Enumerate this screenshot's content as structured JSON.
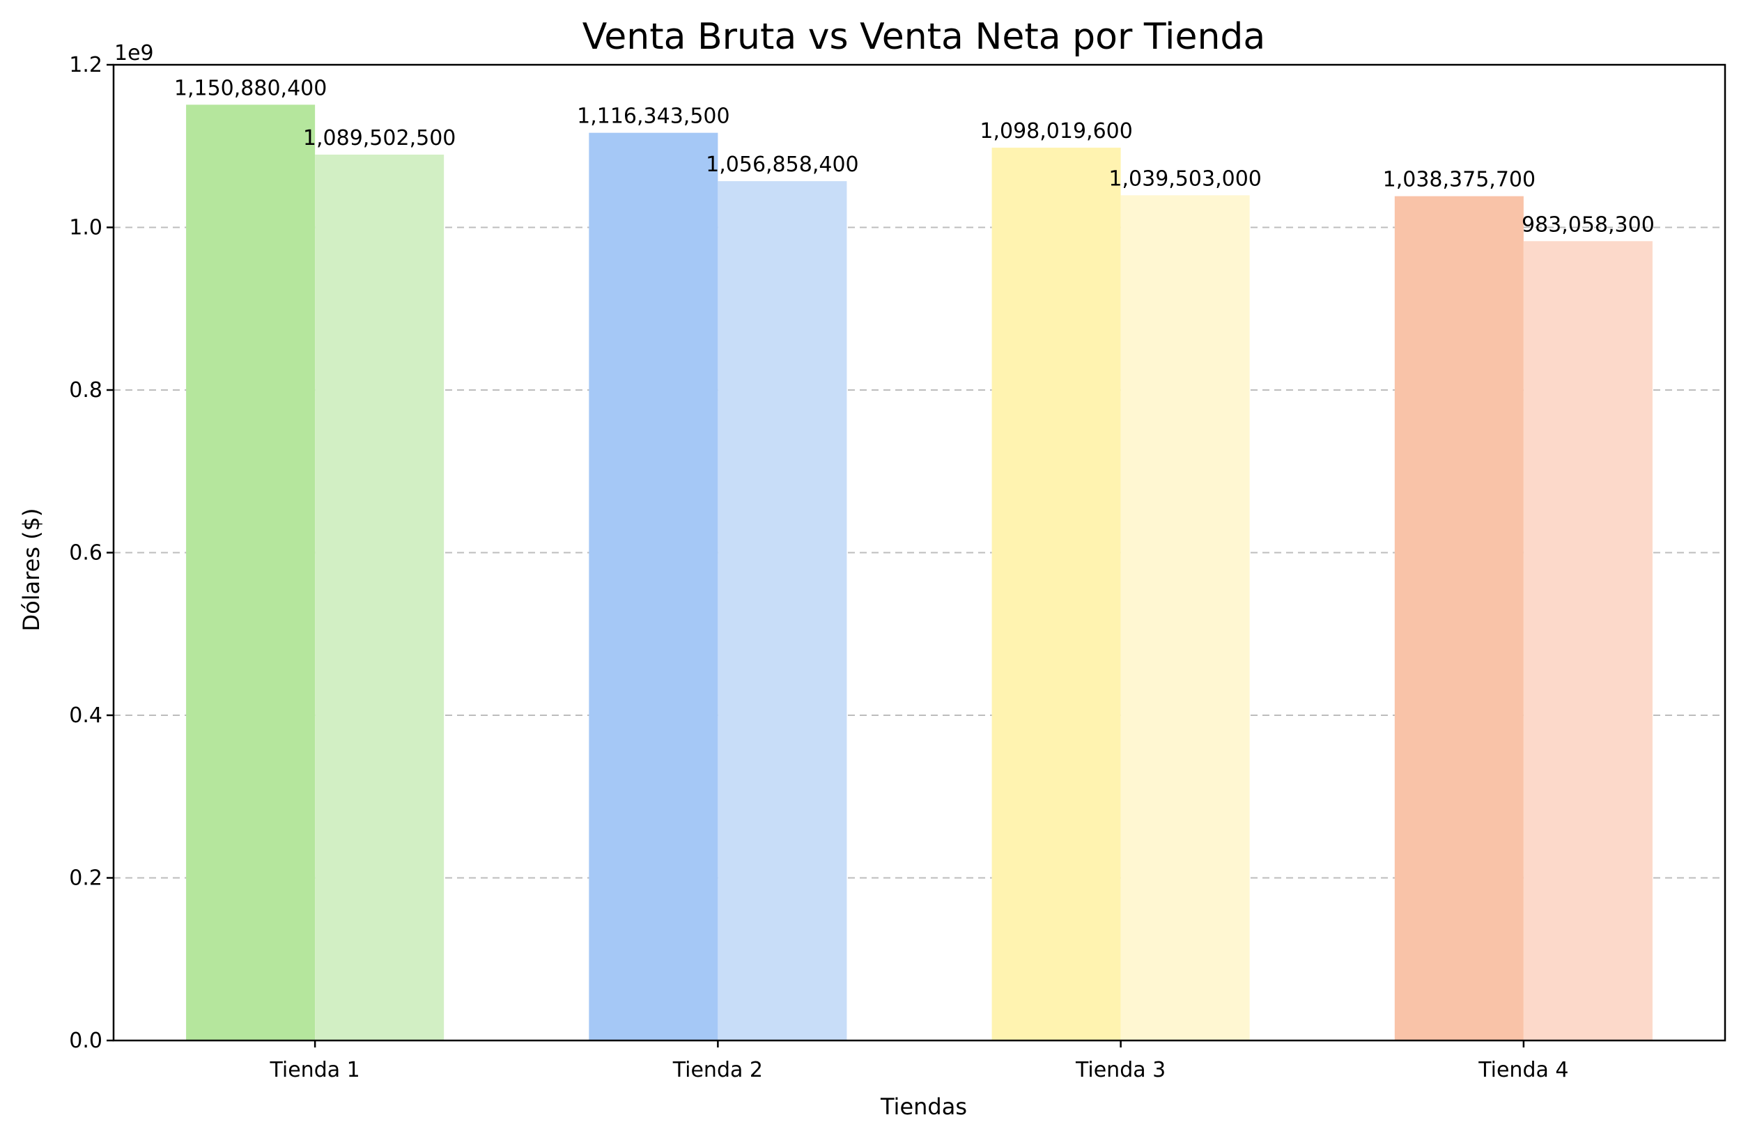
{
  "chart_data": {
    "type": "bar",
    "title": "Venta Bruta vs Venta Neta por Tienda",
    "xlabel": "Tiendas",
    "ylabel": "Dólares ($)",
    "y_offset_label": "1e9",
    "y_scale": 1000000000,
    "ylim": [
      0,
      1.2
    ],
    "yticks": [
      "0.0",
      "0.2",
      "0.4",
      "0.6",
      "0.8",
      "1.0",
      "1.2"
    ],
    "ytick_values": [
      0,
      0.2,
      0.4,
      0.6,
      0.8,
      1.0,
      1.2
    ],
    "grid": "y-axis dashed",
    "categories": [
      "Tienda 1",
      "Tienda 2",
      "Tienda 3",
      "Tienda 4"
    ],
    "series": [
      {
        "values": [
          1150880400,
          1116343500,
          1098019600,
          1038375700
        ],
        "labels": [
          "1,150,880,400",
          "1,116,343,500",
          "1,098,019,600",
          "1,038,375,700"
        ],
        "colors": [
          "#b5e69d",
          "#a5c8f6",
          "#fff3b0",
          "#f9c3a8"
        ]
      },
      {
        "values": [
          1089502500,
          1056858400,
          1039503000,
          983058300
        ],
        "labels": [
          "1,089,502,500",
          "1,056,858,400",
          "1,039,503,000",
          "983,058,300"
        ],
        "colors": [
          "#d2efc4",
          "#c8ddf8",
          "#fff7d2",
          "#fcd9ca"
        ]
      }
    ]
  }
}
